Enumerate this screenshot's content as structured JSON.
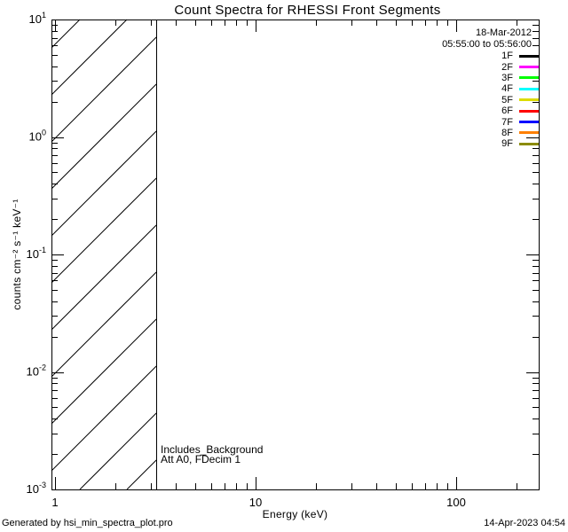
{
  "title": "Count Spectra for RHESSI Front Segments",
  "legend": {
    "date": "18-Mar-2012",
    "time_range": "05:55:00 to 05:56:00",
    "entries": [
      {
        "label": "1F",
        "color": "#000000"
      },
      {
        "label": "2F",
        "color": "#FF00FF"
      },
      {
        "label": "3F",
        "color": "#00FF00"
      },
      {
        "label": "4F",
        "color": "#00FFFF"
      },
      {
        "label": "5F",
        "color": "#DCDC00"
      },
      {
        "label": "6F",
        "color": "#FF0000"
      },
      {
        "label": "7F",
        "color": "#0000FF"
      },
      {
        "label": "8F",
        "color": "#FF8000"
      },
      {
        "label": "9F",
        "color": "#8B8B00"
      }
    ]
  },
  "annotations": {
    "background_note": "Includes_Background",
    "attenuator_note": "Att A0, FDecim 1"
  },
  "footer": {
    "generated_by": "Generated by hsi_min_spectra_plot.pro",
    "generated_at": "14-Apr-2023 04:54"
  },
  "chart_data": {
    "type": "line",
    "title": "Count Spectra for RHESSI Front Segments",
    "xlabel": "Energy (keV)",
    "ylabel": "counts cm⁻² s⁻¹ keV⁻¹",
    "xscale": "log",
    "yscale": "log",
    "xlim": [
      1,
      250
    ],
    "ylim": [
      0.001,
      10
    ],
    "grid": false,
    "legend_position": "upper-right-inside",
    "x_major_ticks": [
      {
        "value": 1,
        "label": "1"
      },
      {
        "value": 10,
        "label": "10"
      },
      {
        "value": 100,
        "label": "100"
      }
    ],
    "y_major_ticks": [
      {
        "value": 10,
        "label": "10¹",
        "base": "10",
        "exp": "1"
      },
      {
        "value": 1,
        "label": "10⁰",
        "base": "10",
        "exp": "0"
      },
      {
        "value": 0.1,
        "label": "10⁻¹",
        "base": "10",
        "exp": "-1"
      },
      {
        "value": 0.01,
        "label": "10⁻²",
        "base": "10",
        "exp": "-2"
      },
      {
        "value": 0.001,
        "label": "10⁻³",
        "base": "10",
        "exp": "-3"
      }
    ],
    "hatched_region": {
      "x_from_kev": 1,
      "x_to_kev": 3.2,
      "style": "diagonal-45deg-hatch"
    },
    "note": "Plot area contains no visible spectra curves; only the low-energy hatched region and the detector-segment legend are drawn.",
    "series": [
      {
        "name": "1F",
        "color": "#000000",
        "points": []
      },
      {
        "name": "2F",
        "color": "#FF00FF",
        "points": []
      },
      {
        "name": "3F",
        "color": "#00FF00",
        "points": []
      },
      {
        "name": "4F",
        "color": "#00FFFF",
        "points": []
      },
      {
        "name": "5F",
        "color": "#DCDC00",
        "points": []
      },
      {
        "name": "6F",
        "color": "#FF0000",
        "points": []
      },
      {
        "name": "7F",
        "color": "#0000FF",
        "points": []
      },
      {
        "name": "8F",
        "color": "#FF8000",
        "points": []
      },
      {
        "name": "9F",
        "color": "#8B8B00",
        "points": []
      }
    ]
  }
}
